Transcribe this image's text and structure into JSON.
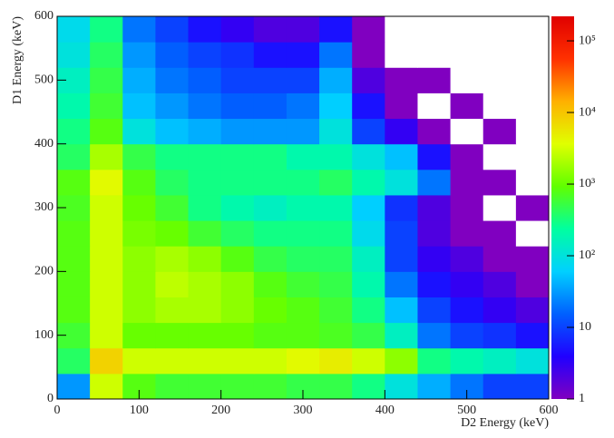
{
  "chart_data": {
    "type": "heatmap",
    "x_label": "D2 Energy (keV)",
    "y_label": "D1 Energy (keV)",
    "x_bins": [
      0,
      40,
      80,
      120,
      160,
      200,
      240,
      280,
      320,
      360,
      400,
      440,
      480,
      520,
      560,
      600
    ],
    "y_bins": [
      0,
      40,
      80,
      120,
      160,
      200,
      240,
      280,
      320,
      360,
      400,
      440,
      480,
      520,
      560,
      600
    ],
    "z": [
      [
        30,
        3000,
        800,
        600,
        600,
        600,
        600,
        500,
        500,
        300,
        100,
        40,
        20,
        10,
        10
      ],
      [
        400,
        8000,
        3000,
        3000,
        3000,
        3000,
        3000,
        4000,
        5000,
        3000,
        1500,
        300,
        200,
        150,
        100
      ],
      [
        600,
        3000,
        1000,
        1000,
        1000,
        1000,
        800,
        800,
        700,
        500,
        150,
        20,
        10,
        8,
        5
      ],
      [
        800,
        3000,
        1500,
        2000,
        2000,
        1500,
        1000,
        800,
        600,
        300,
        50,
        10,
        5,
        3,
        2
      ],
      [
        800,
        3000,
        1500,
        2500,
        2000,
        1500,
        800,
        600,
        500,
        200,
        20,
        5,
        3,
        2,
        1
      ],
      [
        800,
        3000,
        1500,
        2000,
        1500,
        800,
        500,
        400,
        400,
        150,
        10,
        3,
        2,
        1,
        1
      ],
      [
        800,
        3000,
        1200,
        1000,
        600,
        400,
        300,
        300,
        300,
        80,
        10,
        2,
        1,
        1,
        0
      ],
      [
        700,
        3000,
        1000,
        600,
        300,
        200,
        150,
        200,
        200,
        60,
        8,
        2,
        1,
        0,
        1
      ],
      [
        800,
        4000,
        800,
        400,
        300,
        300,
        300,
        300,
        400,
        200,
        100,
        20,
        1,
        1,
        0
      ],
      [
        400,
        2000,
        500,
        300,
        300,
        300,
        300,
        200,
        200,
        100,
        50,
        5,
        1,
        0,
        0
      ],
      [
        300,
        800,
        100,
        50,
        40,
        30,
        30,
        30,
        100,
        10,
        3,
        1,
        0,
        1,
        0
      ],
      [
        200,
        600,
        50,
        30,
        20,
        15,
        15,
        20,
        60,
        5,
        1,
        0,
        1,
        0,
        0
      ],
      [
        150,
        500,
        40,
        20,
        15,
        10,
        10,
        10,
        40,
        2,
        1,
        1,
        0,
        0,
        0
      ],
      [
        100,
        400,
        30,
        15,
        10,
        8,
        5,
        5,
        20,
        1,
        0,
        0,
        0,
        0,
        0
      ],
      [
        80,
        300,
        20,
        10,
        5,
        3,
        2,
        2,
        5,
        1,
        0,
        0,
        0,
        0,
        0
      ]
    ],
    "xlim": [
      0,
      600
    ],
    "ylim": [
      0,
      600
    ],
    "xticks": [
      0,
      100,
      200,
      300,
      400,
      500,
      600
    ],
    "yticks": [
      0,
      100,
      200,
      300,
      400,
      500,
      600
    ],
    "zlim": [
      1,
      220000
    ],
    "zlog": true,
    "zticks": [
      1,
      10,
      {
        "value": 100,
        "label": "10²"
      },
      {
        "value": 1000,
        "label": "10³"
      },
      {
        "value": 10000,
        "label": "10⁴"
      },
      {
        "value": 100000,
        "label": "10⁵"
      }
    ],
    "palette": [
      "#8000c0",
      "#2000ff",
      "#0060ff",
      "#00d0ff",
      "#00ffa0",
      "#60ff00",
      "#e0ff00",
      "#ffb000",
      "#ff3000",
      "#e00000"
    ]
  }
}
